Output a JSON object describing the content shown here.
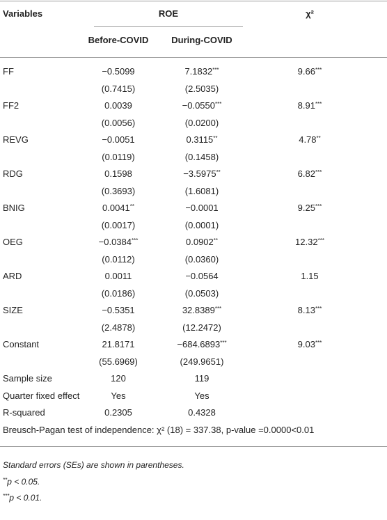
{
  "table": {
    "header": {
      "variables": "Variables",
      "group": "ROE",
      "chi": "χ²",
      "columns": [
        "Before-COVID",
        "During-COVID"
      ]
    },
    "rows": [
      {
        "label": "FF",
        "cells": [
          "−0.5099",
          "7.1832***",
          "9.66***"
        ],
        "se": [
          "(0.7415)",
          "(2.5035)"
        ]
      },
      {
        "label": "FF2",
        "cells": [
          "0.0039",
          "−0.0550***",
          "8.91***"
        ],
        "se": [
          "(0.0056)",
          "(0.0200)"
        ]
      },
      {
        "label": "REVG",
        "cells": [
          "−0.0051",
          "0.3115**",
          "4.78**"
        ],
        "se": [
          "(0.0119)",
          "(0.1458)"
        ]
      },
      {
        "label": "RDG",
        "cells": [
          "0.1598",
          "−3.5975**",
          "6.82***"
        ],
        "se": [
          "(0.3693)",
          "(1.6081)"
        ]
      },
      {
        "label": "BNIG",
        "cells": [
          "0.0041**",
          "−0.0001",
          "9.25***"
        ],
        "se": [
          "(0.0017)",
          "(0.0001)"
        ]
      },
      {
        "label": "OEG",
        "cells": [
          "−0.0384***",
          "0.0902**",
          "12.32***"
        ],
        "se": [
          "(0.0112)",
          "(0.0360)"
        ]
      },
      {
        "label": "ARD",
        "cells": [
          "0.0011",
          "−0.0564",
          "1.15"
        ],
        "se": [
          "(0.0186)",
          "(0.0503)"
        ]
      },
      {
        "label": "SIZE",
        "cells": [
          "−0.5351",
          "32.8389***",
          "8.13***"
        ],
        "se": [
          "(2.4878)",
          "(12.2472)"
        ]
      },
      {
        "label": "Constant",
        "cells": [
          "21.8171",
          "−684.6893***",
          "9.03***"
        ],
        "se": [
          "(55.6969)",
          "(249.9651)"
        ]
      }
    ],
    "stats": [
      {
        "label": "Sample size",
        "cells": [
          "120",
          "119"
        ]
      },
      {
        "label": "Quarter fixed effect",
        "cells": [
          "Yes",
          "Yes"
        ]
      },
      {
        "label": "R-squared",
        "cells": [
          "0.2305",
          "0.4328"
        ]
      }
    ],
    "test": "Breusch-Pagan test of independence: χ² (18) = 337.38, p-value =0.0000<0.01",
    "footnotes": [
      "Standard errors (SEs) are shown in parentheses.",
      "**p < 0.05.",
      "***p < 0.01."
    ]
  }
}
